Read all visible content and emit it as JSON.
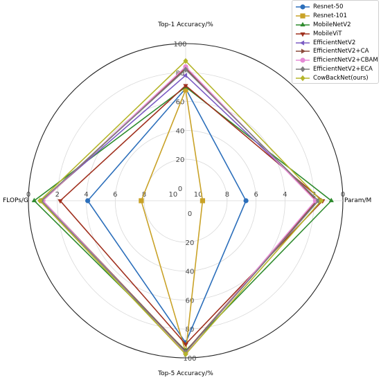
{
  "chart_data": {
    "type": "radar",
    "axes": [
      {
        "label": "Top-1 Accuracy/%",
        "ticks": [
          "100",
          "80",
          "60",
          "40",
          "20",
          "0"
        ]
      },
      {
        "label": "Param/M",
        "ticks": [
          "0",
          "2",
          "4",
          "6",
          "8",
          "10"
        ]
      },
      {
        "label": "Top-5 Accuracy/%",
        "ticks": [
          "0",
          "20",
          "40",
          "60",
          "80",
          "100"
        ]
      },
      {
        "label": "FLOPs/G",
        "ticks": [
          "0",
          "2",
          "4",
          "6",
          "8",
          "10"
        ]
      }
    ],
    "series": [
      {
        "name": "Resnet-50",
        "color": "#2c6fbb",
        "marker": "circle",
        "values": {
          "top1": 69,
          "param": 6.7,
          "top5": 89.5,
          "flops": 4.1
        }
      },
      {
        "name": "Resnet-101",
        "color": "#c9a227",
        "marker": "square",
        "values": {
          "top1": 68,
          "param": 9.7,
          "top5": 96,
          "flops": 7.8
        }
      },
      {
        "name": "MobileNetV2",
        "color": "#2e8b2e",
        "marker": "triangle-up",
        "values": {
          "top1": 70,
          "param": 0.8,
          "top5": 95,
          "flops": 0.4
        }
      },
      {
        "name": "MobileViT",
        "color": "#a0301e",
        "marker": "triangle-down",
        "values": {
          "top1": 71,
          "param": 1.4,
          "top5": 90.5,
          "flops": 2.2
        }
      },
      {
        "name": "EfficientNetV2",
        "color": "#7b5cc4",
        "marker": "triangle-left",
        "values": {
          "top1": 78,
          "param": 1.7,
          "top5": 96,
          "flops": 0.9
        }
      },
      {
        "name": "EfficientNetV2+CA",
        "color": "#8b4a3c",
        "marker": "triangle-right",
        "values": {
          "top1": 83,
          "param": 1.8,
          "top5": 95.5,
          "flops": 1.0
        }
      },
      {
        "name": "EfficientNetV2+CBAM",
        "color": "#e68ad6",
        "marker": "circle",
        "values": {
          "top1": 84,
          "param": 1.9,
          "top5": 96.5,
          "flops": 1.0
        }
      },
      {
        "name": "EfficientNetV2+ECA",
        "color": "#7d7d7d",
        "marker": "diamond",
        "values": {
          "top1": 82,
          "param": 1.7,
          "top5": 96,
          "flops": 0.9
        }
      },
      {
        "name": "CowBackNet(ours)",
        "color": "#b5b52a",
        "marker": "diamond",
        "values": {
          "top1": 88,
          "param": 1.5,
          "top5": 97.5,
          "flops": 0.8
        }
      }
    ],
    "legend_position": "top-right",
    "grid": true
  }
}
